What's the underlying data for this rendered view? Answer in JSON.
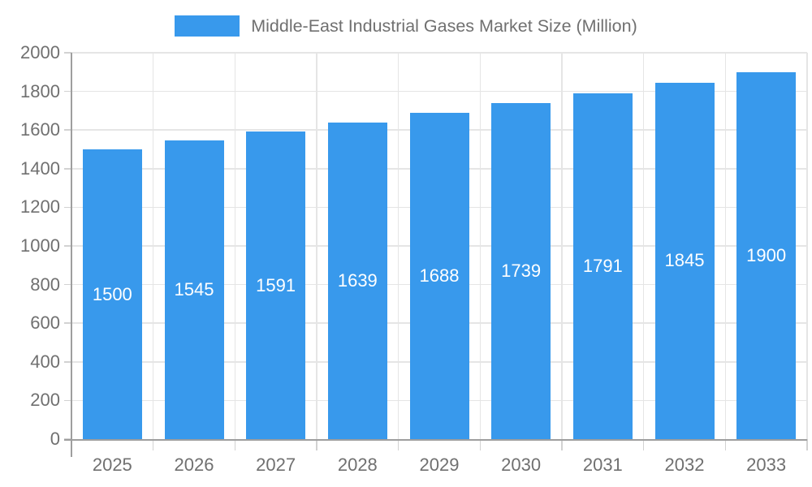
{
  "chart_data": {
    "type": "bar",
    "title": "Middle-East Industrial Gases Market Size (Million)",
    "categories": [
      "2025",
      "2026",
      "2027",
      "2028",
      "2029",
      "2030",
      "2031",
      "2032",
      "2033"
    ],
    "values": [
      1500,
      1545,
      1591,
      1639,
      1688,
      1739,
      1791,
      1845,
      1900
    ],
    "xlabel": "",
    "ylabel": "",
    "ylim": [
      0,
      2000
    ],
    "ytick_step": 200,
    "yticks": [
      "0",
      "200",
      "400",
      "600",
      "800",
      "1000",
      "1200",
      "1400",
      "1600",
      "1800",
      "2000"
    ],
    "grid": true,
    "legend_position": "top",
    "bar_color": "#3899ec",
    "value_label_color": "#ffffff",
    "axis_text_color": "#707070",
    "grid_color": "#e5e5e5",
    "tick_color": "#d2d2d2",
    "axis_line_color": "#9e9e9e"
  }
}
